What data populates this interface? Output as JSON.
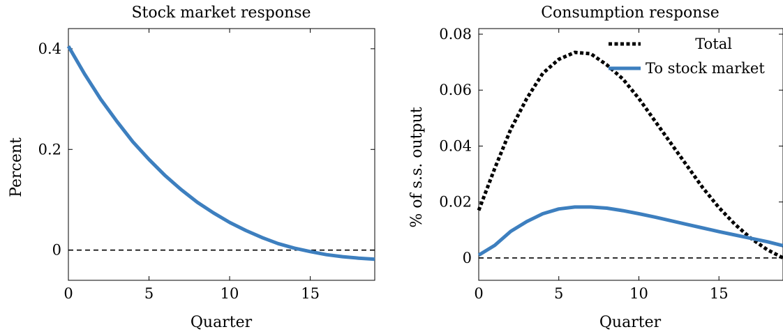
{
  "chart_data": [
    {
      "type": "line",
      "title": "Stock market response",
      "xlabel": "Quarter",
      "ylabel": "Percent",
      "xlim": [
        0,
        19
      ],
      "ylim": [
        -0.06,
        0.44
      ],
      "xticks": [
        0,
        5,
        10,
        15
      ],
      "yticks": [
        0,
        0.2,
        0.4
      ],
      "xtick_labels": [
        "0",
        "5",
        "10",
        "15"
      ],
      "ytick_labels": [
        "0",
        "0.2",
        "0.4"
      ],
      "grid": false,
      "zero_line": {
        "y": 0,
        "style": "dashed",
        "color": "#000000"
      },
      "series": [
        {
          "color": "#3d7fbf",
          "style": "solid",
          "x": [
            0,
            1,
            2,
            3,
            4,
            5,
            6,
            7,
            8,
            9,
            10,
            11,
            12,
            13,
            14,
            15,
            16,
            17,
            18,
            19
          ],
          "y": [
            0.405,
            0.35,
            0.3,
            0.256,
            0.215,
            0.18,
            0.148,
            0.12,
            0.095,
            0.074,
            0.055,
            0.039,
            0.025,
            0.013,
            0.004,
            -0.003,
            -0.009,
            -0.013,
            -0.016,
            -0.018
          ]
        }
      ]
    },
    {
      "type": "line",
      "title": "Consumption response",
      "xlabel": "Quarter",
      "ylabel": "% of s.s. output",
      "xlim": [
        0,
        19
      ],
      "ylim": [
        -0.008,
        0.082
      ],
      "xticks": [
        0,
        5,
        10,
        15
      ],
      "yticks": [
        0,
        0.02,
        0.04,
        0.06,
        0.08
      ],
      "xtick_labels": [
        "0",
        "5",
        "10",
        "15"
      ],
      "ytick_labels": [
        "0",
        "0.02",
        "0.04",
        "0.06",
        "0.08"
      ],
      "grid": false,
      "legend_position": "top-right",
      "zero_line": {
        "y": 0,
        "style": "dashed",
        "color": "#000000"
      },
      "series": [
        {
          "name": "Total",
          "color": "#000000",
          "style": "dotted",
          "x": [
            0,
            1,
            2,
            3,
            4,
            5,
            6,
            7,
            8,
            9,
            10,
            11,
            12,
            13,
            14,
            15,
            16,
            17,
            18,
            19
          ],
          "y": [
            0.017,
            0.032,
            0.046,
            0.057,
            0.066,
            0.071,
            0.0735,
            0.073,
            0.069,
            0.064,
            0.057,
            0.049,
            0.041,
            0.033,
            0.025,
            0.018,
            0.012,
            0.007,
            0.003,
            0.0
          ]
        },
        {
          "name": "To stock market",
          "color": "#3d7fbf",
          "style": "solid",
          "x": [
            0,
            1,
            2,
            3,
            4,
            5,
            6,
            7,
            8,
            9,
            10,
            11,
            12,
            13,
            14,
            15,
            16,
            17,
            18,
            19
          ],
          "y": [
            0.001,
            0.0045,
            0.0095,
            0.013,
            0.0158,
            0.0175,
            0.0182,
            0.0182,
            0.0178,
            0.0169,
            0.0158,
            0.0146,
            0.0133,
            0.012,
            0.0107,
            0.0094,
            0.0082,
            0.007,
            0.0058,
            0.0044
          ]
        }
      ]
    }
  ]
}
